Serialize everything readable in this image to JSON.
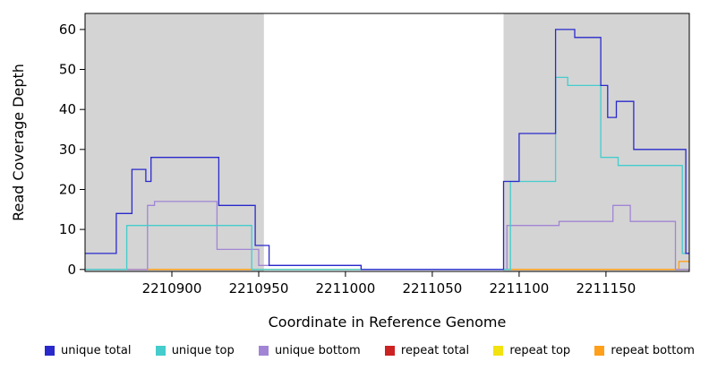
{
  "chart_data": {
    "type": "line",
    "step": true,
    "title": "",
    "xlabel": "Coordinate in Reference Genome",
    "ylabel": "Read Coverage Depth",
    "xlim": [
      2210850,
      2211198
    ],
    "ylim": [
      -0.5,
      64
    ],
    "xticks": [
      2210900,
      2210950,
      2211000,
      2211050,
      2211100,
      2211150
    ],
    "yticks": [
      0,
      10,
      20,
      30,
      40,
      50,
      60
    ],
    "grid": false,
    "legend_position": "bottom",
    "background_color": "#ffffff",
    "shaded_regions": [
      {
        "x0": 2210850,
        "x1": 2210953,
        "color": "#d4d4d4"
      },
      {
        "x0": 2211091,
        "x1": 2211198,
        "color": "#d4d4d4"
      }
    ],
    "draw_order": [
      3,
      4,
      5,
      2,
      1,
      0
    ],
    "series": [
      {
        "name": "unique total",
        "color": "#2929cc",
        "points": [
          [
            2210850,
            4
          ],
          [
            2210868,
            14
          ],
          [
            2210877,
            25
          ],
          [
            2210885,
            22
          ],
          [
            2210888,
            28
          ],
          [
            2210927,
            16
          ],
          [
            2210948,
            6
          ],
          [
            2210956,
            1
          ],
          [
            2211009,
            0
          ],
          [
            2211091,
            22
          ],
          [
            2211100,
            34
          ],
          [
            2211121,
            60
          ],
          [
            2211132,
            58
          ],
          [
            2211147,
            46
          ],
          [
            2211151,
            38
          ],
          [
            2211156,
            42
          ],
          [
            2211166,
            30
          ],
          [
            2211196,
            4
          ]
        ]
      },
      {
        "name": "unique top",
        "color": "#45cccc",
        "points": [
          [
            2210850,
            0
          ],
          [
            2210874,
            11
          ],
          [
            2210946,
            0
          ],
          [
            2211095,
            22
          ],
          [
            2211121,
            48
          ],
          [
            2211128,
            46
          ],
          [
            2211147,
            28
          ],
          [
            2211157,
            26
          ],
          [
            2211194,
            4
          ]
        ]
      },
      {
        "name": "unique bottom",
        "color": "#a185d4",
        "points": [
          [
            2210850,
            0
          ],
          [
            2210886,
            16
          ],
          [
            2210890,
            17
          ],
          [
            2210926,
            5
          ],
          [
            2210950,
            1
          ],
          [
            2211009,
            0
          ],
          [
            2211093,
            11
          ],
          [
            2211123,
            12
          ],
          [
            2211154,
            16
          ],
          [
            2211164,
            12
          ],
          [
            2211190,
            0
          ]
        ]
      },
      {
        "name": "repeat total",
        "color": "#cc2222",
        "points": [
          [
            2210850,
            0
          ]
        ]
      },
      {
        "name": "repeat top",
        "color": "#f2e20f",
        "points": [
          [
            2210850,
            0
          ]
        ]
      },
      {
        "name": "repeat bottom",
        "color": "#ff9f1a",
        "points": [
          [
            2210850,
            0
          ],
          [
            2211192,
            2
          ]
        ]
      }
    ]
  }
}
